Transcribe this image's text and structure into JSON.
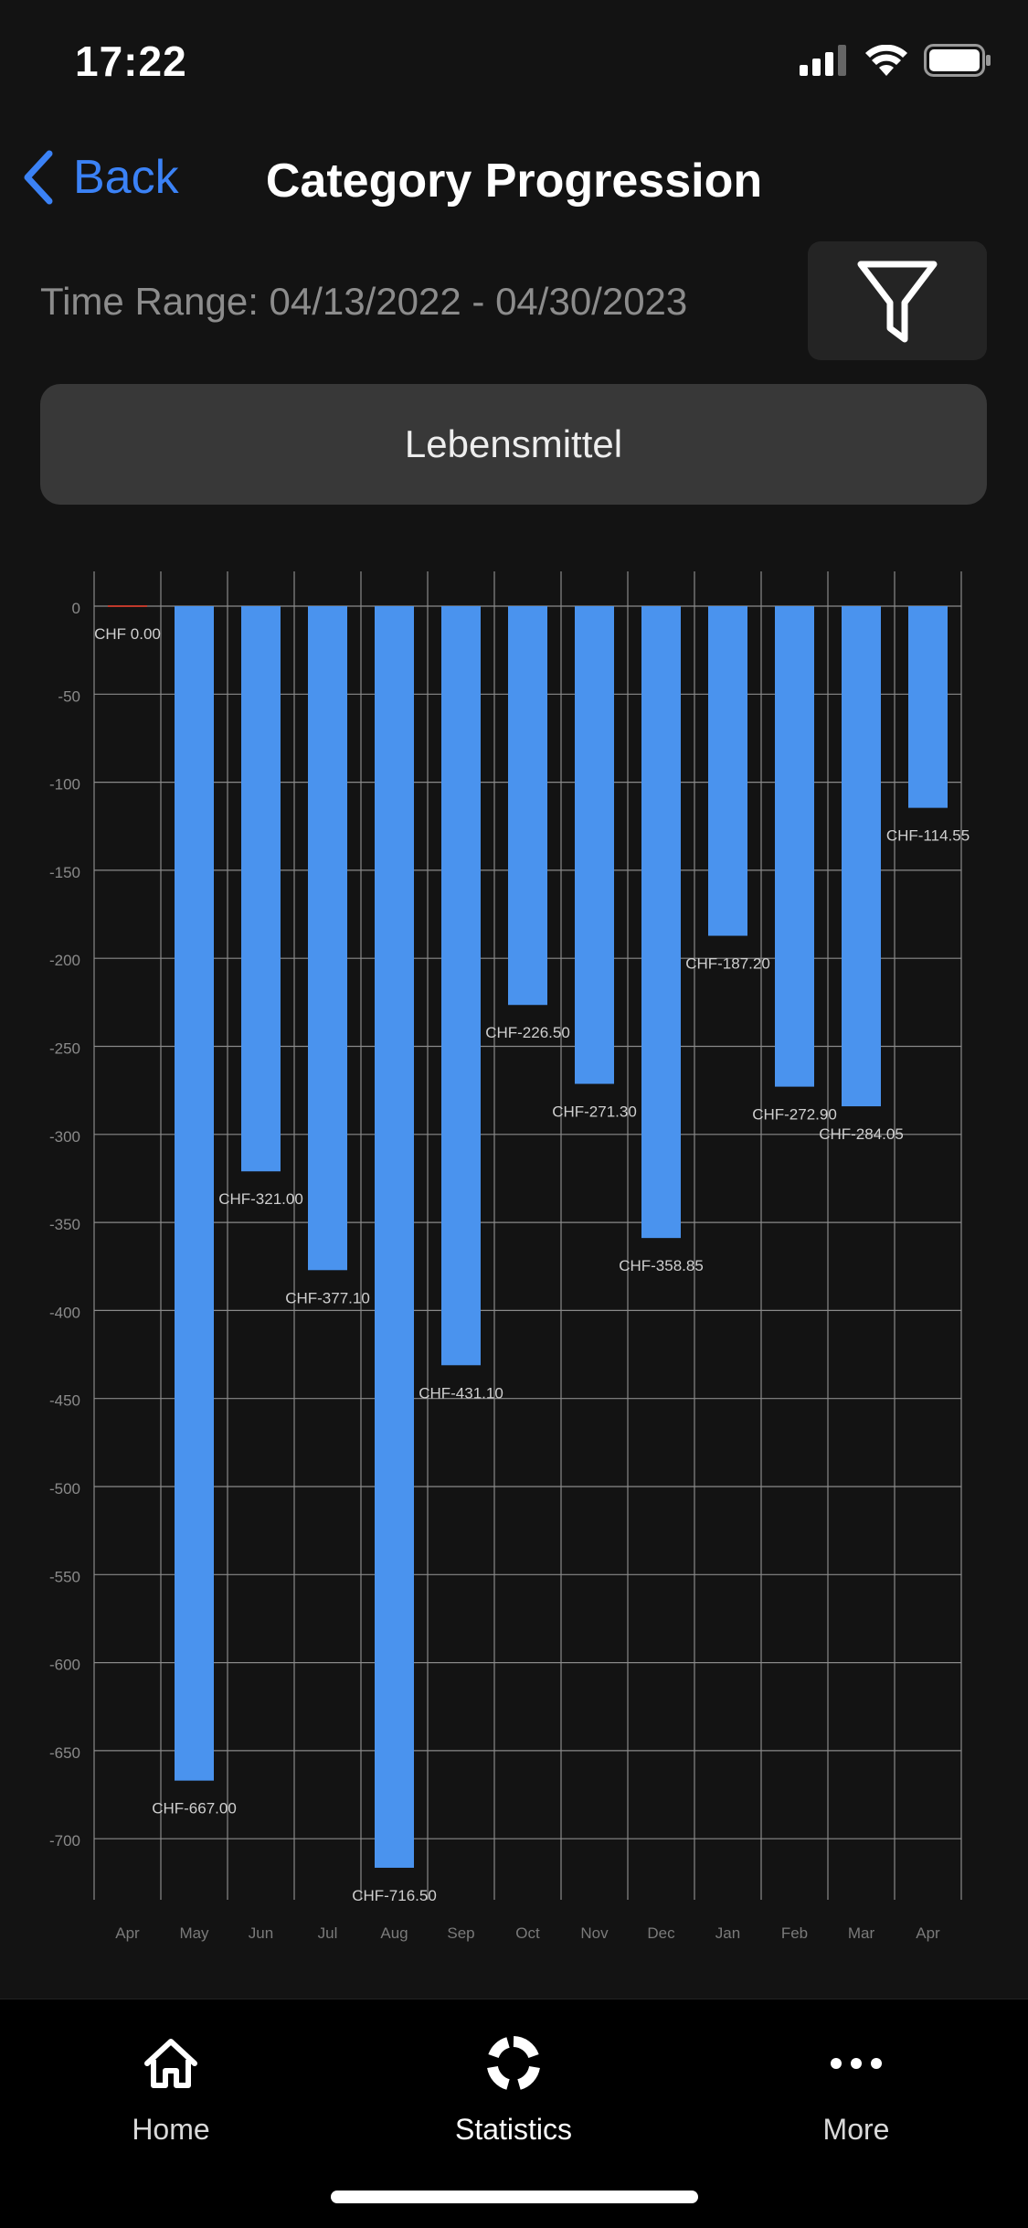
{
  "status_bar": {
    "time": "17:22"
  },
  "nav": {
    "back_label": "Back",
    "title": "Category Progression"
  },
  "time_range": "Time Range: 04/13/2022 - 04/30/2023",
  "category": "Lebensmittel",
  "chart_data": {
    "type": "bar",
    "categories": [
      "Apr",
      "May",
      "Jun",
      "Jul",
      "Aug",
      "Sep",
      "Oct",
      "Nov",
      "Dec",
      "Jan",
      "Feb",
      "Mar",
      "Apr"
    ],
    "values": [
      0.0,
      -667.0,
      -321.0,
      -377.1,
      -716.5,
      -431.1,
      -226.5,
      -271.3,
      -358.85,
      -187.2,
      -272.9,
      -284.05,
      -114.55
    ],
    "data_labels": [
      "CHF 0.00",
      "CHF-667.00",
      "CHF-321.00",
      "CHF-377.10",
      "CHF-716.50",
      "CHF-431.10",
      "CHF-226.50",
      "CHF-271.30",
      "CHF-358.85",
      "CHF-187.20",
      "CHF-272.90",
      "CHF-284.05",
      "CHF-114.55"
    ],
    "y_ticks": [
      0,
      -50,
      -100,
      -150,
      -200,
      -250,
      -300,
      -350,
      -400,
      -450,
      -500,
      -550,
      -600,
      -650,
      -700
    ],
    "ylim": [
      -735,
      20
    ],
    "grid": true,
    "bar_color": "#4a93ee"
  },
  "tabs": [
    {
      "label": "Home",
      "icon": "home-icon"
    },
    {
      "label": "Statistics",
      "icon": "statistics-icon"
    },
    {
      "label": "More",
      "icon": "more-icon"
    }
  ],
  "colors": {
    "accent": "#3b82f6",
    "background": "#131313"
  }
}
